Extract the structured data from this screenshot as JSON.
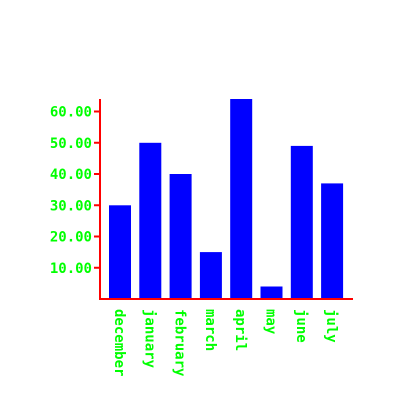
{
  "chart_data": {
    "type": "bar",
    "categories": [
      "december",
      "january",
      "february",
      "march",
      "april",
      "may",
      "june",
      "july"
    ],
    "values": [
      30,
      50,
      40,
      15,
      64,
      4,
      49,
      37
    ],
    "yticks": [
      10,
      20,
      30,
      40,
      50,
      60
    ],
    "ytick_labels": [
      "10.00",
      "20.00",
      "30.00",
      "40.00",
      "50.00",
      "60.00"
    ],
    "ylim": [
      0,
      64
    ],
    "title": "",
    "xlabel": "",
    "ylabel": "",
    "grid": false,
    "colors": {
      "bar": "#0000ff",
      "axis": "#ff0000",
      "label": "#00ff00"
    }
  }
}
